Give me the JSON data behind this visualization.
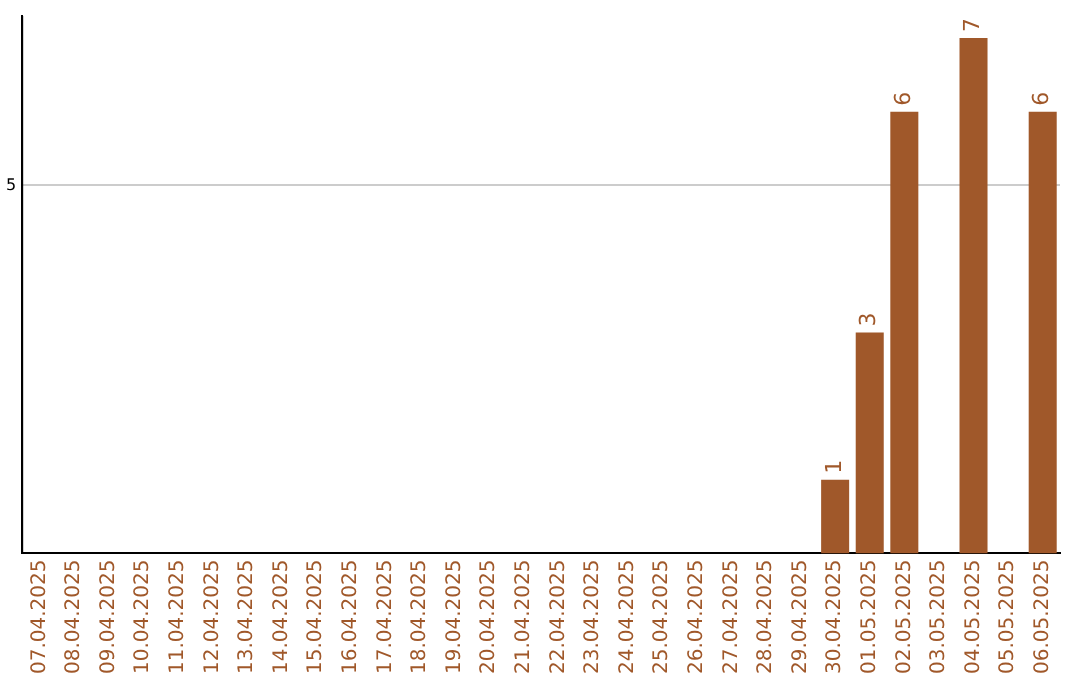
{
  "chart_data": {
    "type": "bar",
    "categories": [
      "07.04.2025",
      "08.04.2025",
      "09.04.2025",
      "10.04.2025",
      "11.04.2025",
      "12.04.2025",
      "13.04.2025",
      "14.04.2025",
      "15.04.2025",
      "16.04.2025",
      "17.04.2025",
      "18.04.2025",
      "19.04.2025",
      "20.04.2025",
      "21.04.2025",
      "22.04.2025",
      "23.04.2025",
      "24.04.2025",
      "25.04.2025",
      "26.04.2025",
      "27.04.2025",
      "28.04.2025",
      "29.04.2025",
      "30.04.2025",
      "01.05.2025",
      "02.05.2025",
      "03.05.2025",
      "04.05.2025",
      "05.05.2025",
      "06.05.2025"
    ],
    "values": [
      null,
      null,
      null,
      null,
      null,
      null,
      null,
      null,
      null,
      null,
      null,
      null,
      null,
      null,
      null,
      null,
      null,
      null,
      null,
      null,
      null,
      null,
      null,
      1,
      3,
      6,
      null,
      7,
      null,
      6
    ],
    "data_labels": true,
    "color": "#a0582a",
    "ylim": [
      0,
      7.3
    ],
    "yticks": [
      5
    ],
    "grid": "y",
    "legend": false
  }
}
